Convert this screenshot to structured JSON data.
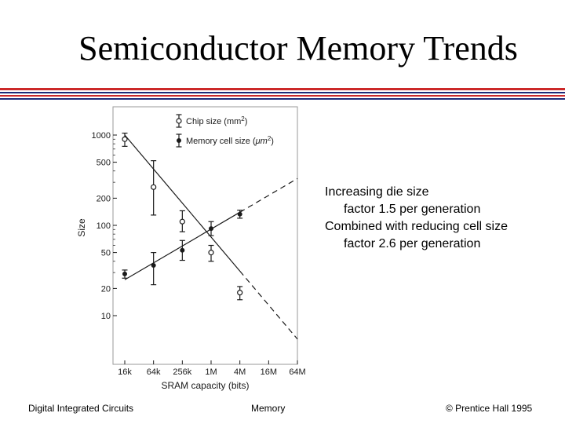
{
  "slide": {
    "title": "Semiconductor Memory Trends",
    "rule_colors": [
      "#cc2929",
      "#1f2a78",
      "#cc2929",
      "#1f2a78"
    ],
    "notes": [
      "Increasing die size",
      "factor 1.5 per generation",
      "Combined with reducing cell size",
      "factor 2.6 per generation"
    ],
    "footer": {
      "left": "Digital Integrated Circuits",
      "center": "Memory",
      "right": "© Prentice Hall 1995"
    }
  },
  "chart_data": {
    "type": "scatter",
    "title": "",
    "xlabel": "SRAM capacity (bits)",
    "ylabel": "Size",
    "y_scale": "log",
    "categories": [
      "16k",
      "64k",
      "256k",
      "1M",
      "4M",
      "16M",
      "64M"
    ],
    "y_ticks": [
      10,
      20,
      50,
      100,
      200,
      500,
      1000
    ],
    "ylim": [
      5,
      1300
    ],
    "legend_position": "top",
    "series": [
      {
        "name": "Chip size (mm",
        "name_sup": "2",
        "name_end": ")",
        "marker": "open-circle",
        "points": [
          {
            "x": "16k",
            "y": 900,
            "lo": 750,
            "hi": 1050
          },
          {
            "x": "64k",
            "y": 265,
            "lo": 130,
            "hi": 520
          },
          {
            "x": "256k",
            "y": 110,
            "lo": 85,
            "hi": 145
          },
          {
            "x": "1M",
            "y": 50,
            "lo": 40,
            "hi": 60
          },
          {
            "x": "4M",
            "y": 18,
            "lo": 15,
            "hi": 21
          }
        ],
        "trend": {
          "solid_from": "16k",
          "solid_to": "4M",
          "dashed_to": "64M",
          "y_start": 1000,
          "y_end": 5.5
        }
      },
      {
        "name": "Memory cell size (",
        "name_mid": "μm",
        "name_sup": "2",
        "name_end": ")",
        "marker": "filled-circle",
        "points": [
          {
            "x": "16k",
            "y": 29,
            "lo": 26,
            "hi": 32
          },
          {
            "x": "64k",
            "y": 36,
            "lo": 22,
            "hi": 50
          },
          {
            "x": "256k",
            "y": 53,
            "lo": 41,
            "hi": 68
          },
          {
            "x": "1M",
            "y": 92,
            "lo": 77,
            "hi": 110
          },
          {
            "x": "4M",
            "y": 133,
            "lo": 120,
            "hi": 147
          }
        ],
        "trend": {
          "solid_from": "16k",
          "solid_to": "4M",
          "dashed_to": "64M",
          "y_start": 25,
          "y_end": 330
        }
      }
    ]
  }
}
